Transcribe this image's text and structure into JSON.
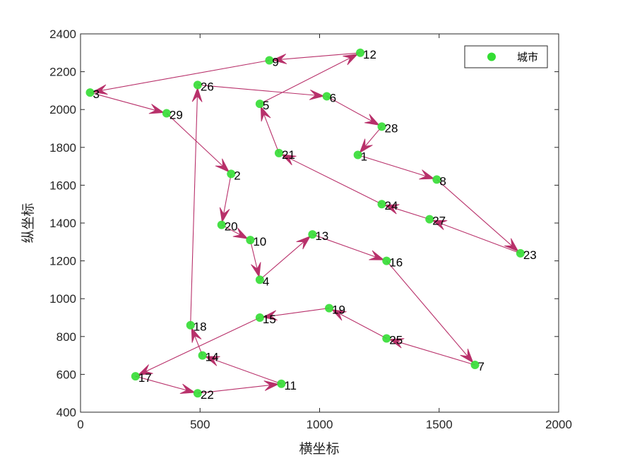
{
  "chart_data": {
    "type": "scatter",
    "xlabel": "横坐标",
    "ylabel": "纵坐标",
    "xlim": [
      0,
      2000
    ],
    "ylim": [
      400,
      2400
    ],
    "x_ticks": [
      0,
      500,
      1000,
      1500,
      2000
    ],
    "y_ticks": [
      400,
      600,
      800,
      1000,
      1200,
      1400,
      1600,
      1800,
      2000,
      2200,
      2400
    ],
    "grid": false,
    "legend": {
      "position": "top-right",
      "entries": [
        "城市"
      ]
    },
    "colors": {
      "point": "#33dd33",
      "route": "#b8306a",
      "axis": "#262626"
    },
    "series": [
      {
        "name": "城市",
        "cities": [
          {
            "id": "1",
            "x": 1160,
            "y": 1760
          },
          {
            "id": "2",
            "x": 630,
            "y": 1660
          },
          {
            "id": "3",
            "x": 40,
            "y": 2090
          },
          {
            "id": "4",
            "x": 750,
            "y": 1100
          },
          {
            "id": "5",
            "x": 750,
            "y": 2030
          },
          {
            "id": "6",
            "x": 1030,
            "y": 2070
          },
          {
            "id": "7",
            "x": 1650,
            "y": 650
          },
          {
            "id": "8",
            "x": 1490,
            "y": 1630
          },
          {
            "id": "9",
            "x": 790,
            "y": 2260
          },
          {
            "id": "10",
            "x": 710,
            "y": 1310
          },
          {
            "id": "11",
            "x": 840,
            "y": 550
          },
          {
            "id": "12",
            "x": 1170,
            "y": 2300
          },
          {
            "id": "13",
            "x": 970,
            "y": 1340
          },
          {
            "id": "14",
            "x": 510,
            "y": 700
          },
          {
            "id": "15",
            "x": 750,
            "y": 900
          },
          {
            "id": "16",
            "x": 1280,
            "y": 1200
          },
          {
            "id": "17",
            "x": 230,
            "y": 590
          },
          {
            "id": "18",
            "x": 460,
            "y": 860
          },
          {
            "id": "19",
            "x": 1040,
            "y": 950
          },
          {
            "id": "20",
            "x": 590,
            "y": 1390
          },
          {
            "id": "21",
            "x": 830,
            "y": 1770
          },
          {
            "id": "22",
            "x": 490,
            "y": 500
          },
          {
            "id": "23",
            "x": 1840,
            "y": 1240
          },
          {
            "id": "24",
            "x": 1260,
            "y": 1500
          },
          {
            "id": "25",
            "x": 1280,
            "y": 790
          },
          {
            "id": "26",
            "x": 490,
            "y": 2130
          },
          {
            "id": "27",
            "x": 1460,
            "y": 1420
          },
          {
            "id": "28",
            "x": 1260,
            "y": 1910
          },
          {
            "id": "29",
            "x": 360,
            "y": 1980
          }
        ]
      }
    ],
    "route": [
      "1",
      "8",
      "23",
      "27",
      "24",
      "21",
      "5",
      "12",
      "9",
      "3",
      "29",
      "2",
      "20",
      "10",
      "4",
      "13",
      "16",
      "7",
      "25",
      "19",
      "15",
      "17",
      "22",
      "11",
      "14",
      "18",
      "26",
      "6",
      "28",
      "1"
    ]
  }
}
